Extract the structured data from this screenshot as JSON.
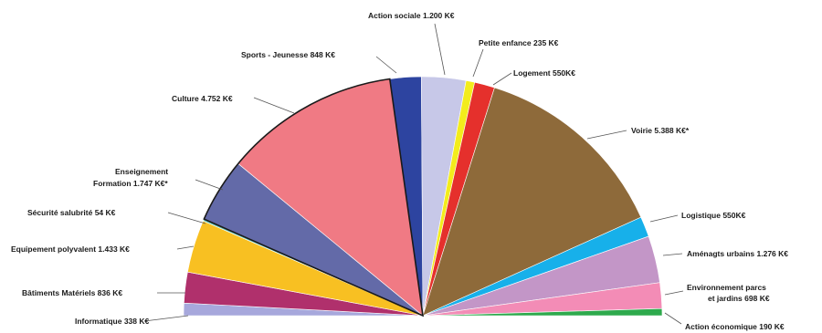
{
  "chart_data": {
    "type": "pie",
    "layout": "semicircle",
    "unit": "K€",
    "slices": [
      {
        "key": "informatique",
        "label": "Informatique",
        "value": 338,
        "display": "338 K€",
        "color": "#a7a8dc"
      },
      {
        "key": "batiments",
        "label": "Bâtiments Matériels",
        "value": 836,
        "display": "836 K€",
        "color": "#b0306c"
      },
      {
        "key": "equipement",
        "label": "Equipement polyvalent",
        "value": 1433,
        "display": "1.433 K€",
        "color": "#f8c022"
      },
      {
        "key": "securite",
        "label": "Sécurité salubrité",
        "value": 54,
        "display": "54 K€",
        "color": "#63c4b9"
      },
      {
        "key": "enseignement",
        "label": "Enseignement Formation",
        "value": 1747,
        "display": "1.747 K€*",
        "color": "#636aa8"
      },
      {
        "key": "culture",
        "label": "Culture",
        "value": 4752,
        "display": "4.752 K€",
        "color": "#f07a84"
      },
      {
        "key": "sports",
        "label": "Sports - Jeunesse",
        "value": 848,
        "display": "848 K€",
        "color": "#2d44a0"
      },
      {
        "key": "action_sociale",
        "label": "Action sociale",
        "value": 1200,
        "display": "1.200 K€",
        "color": "#c7c8e8"
      },
      {
        "key": "petite_enfance",
        "label": "Petite enfance",
        "value": 235,
        "display": "235 K€",
        "color": "#f3ec1c"
      },
      {
        "key": "logement",
        "label": "Logement",
        "value": 550,
        "display": "550K€",
        "color": "#e5302c"
      },
      {
        "key": "voirie",
        "label": "Voirie",
        "value": 5388,
        "display": "5.388 K€*",
        "color": "#8e6a3a"
      },
      {
        "key": "logistique",
        "label": "Logistique",
        "value": 550,
        "display": "550K€",
        "color": "#17b0ea"
      },
      {
        "key": "amenagts",
        "label": "Aménagts urbains",
        "value": 1276,
        "display": "1.276 K€",
        "color": "#c396c7"
      },
      {
        "key": "environnement",
        "label": "Environnement parcs et jardins",
        "value": 698,
        "display": "698 K€",
        "color": "#f38cb6"
      },
      {
        "key": "action_eco",
        "label": "Action économique",
        "value": 190,
        "display": "190 K€",
        "color": "#2eaa4d"
      }
    ]
  },
  "labels": {
    "informatique": "Informatique  338 K€",
    "batiments": "Bâtiments Matériels 836 K€",
    "equipement": "Equipement polyvalent 1.433  K€",
    "securite": "Sécurité salubrité 54 K€",
    "enseignement_l1": "Enseignement",
    "enseignement_l2": "Formation 1.747 K€*",
    "culture": "Culture 4.752 K€",
    "sports": "Sports - Jeunesse   848 K€",
    "action_sociale": "Action sociale  1.200 K€",
    "petite_enfance": "Petite enfance  235 K€",
    "logement": "Logement 550K€",
    "voirie": "Voirie 5.388 K€*",
    "logistique": "Logistique 550K€",
    "amenagts": "Aménagts urbains 1.276 K€",
    "environnement_l1": "Environnement parcs",
    "environnement_l2": "et jardins   698 K€",
    "action_eco": "Action économique  190 K€"
  }
}
